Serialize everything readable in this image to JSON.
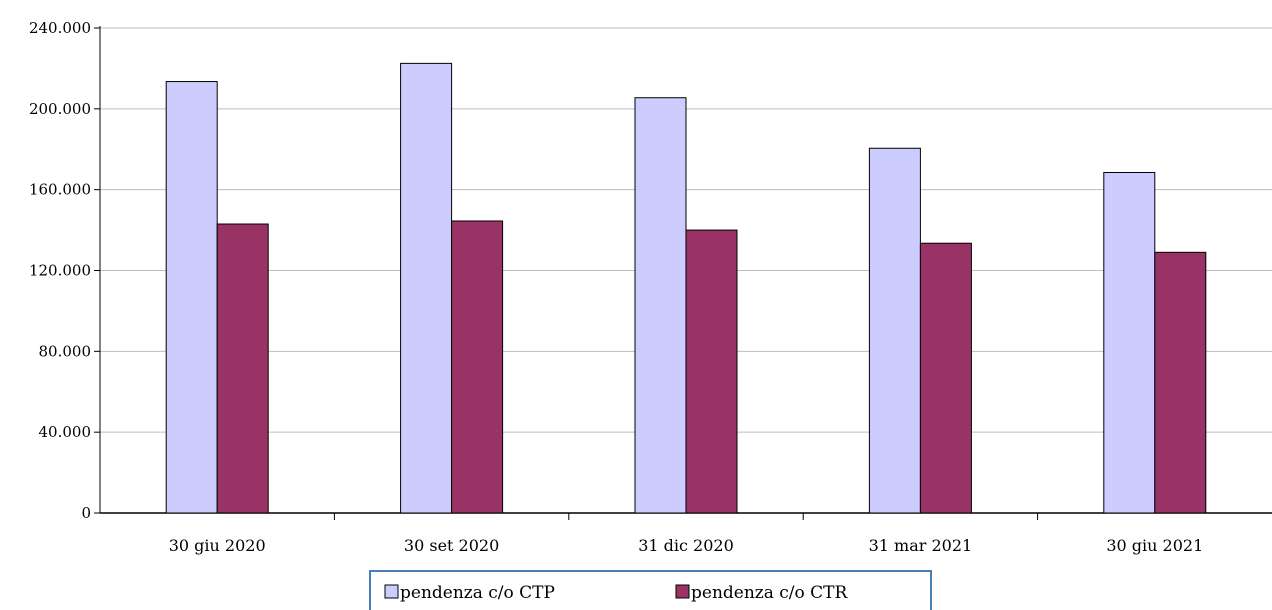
{
  "chart_data": {
    "type": "bar",
    "title": "",
    "xlabel": "",
    "ylabel": "",
    "categories": [
      "30 giu 2020",
      "30 set 2020",
      "31 dic 2020",
      "31 mar 2021",
      "30 giu 2021"
    ],
    "series": [
      {
        "name": "pendenza c/o CTP",
        "color": "#ccccff",
        "values": [
          213500,
          222500,
          205500,
          180500,
          168500
        ]
      },
      {
        "name": "pendenza c/o CTR",
        "color": "#993366",
        "values": [
          143000,
          144500,
          140000,
          133500,
          129000
        ]
      }
    ],
    "ylim": [
      0,
      240000
    ],
    "yticks": [
      0,
      40000,
      80000,
      120000,
      160000,
      200000,
      240000
    ],
    "ytick_labels": [
      "0",
      "40.000",
      "80.000",
      "120.000",
      "160.000",
      "200.000",
      "240.000"
    ],
    "grid": true,
    "legend_position": "bottom"
  }
}
